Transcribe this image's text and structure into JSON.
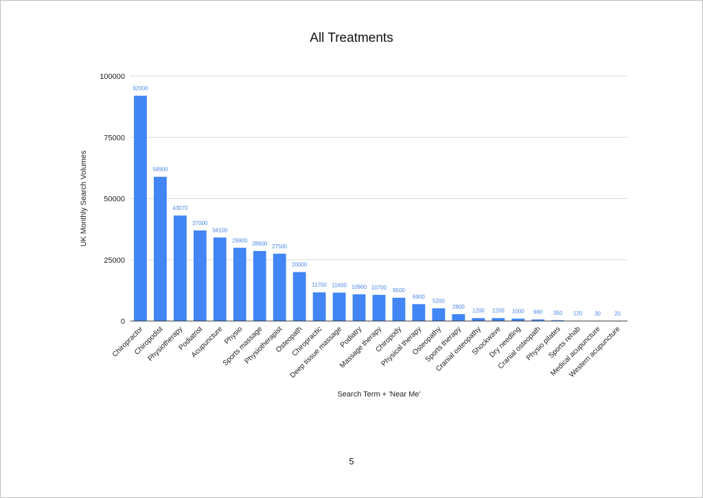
{
  "page": {
    "page_number": "5"
  },
  "chart_data": {
    "type": "bar",
    "title": "All Treatments",
    "xlabel": "Search Term + 'Near Me'",
    "ylabel": "UK Monthly Search Volumes",
    "ylim": [
      0,
      100000
    ],
    "yticks": [
      0,
      25000,
      50000,
      75000,
      100000
    ],
    "grid": true,
    "legend": "none",
    "bar_color": "#4285f4",
    "label_color": "#4a86e8",
    "categories": [
      "Chiropractor",
      "Chiropodist",
      "Physiotherapy",
      "Podiatrist",
      "Acupuncture",
      "Physio",
      "Sports massage",
      "Physiotherapist",
      "Osteopath",
      "Chiropractic",
      "Deep tissue massage",
      "Podiatry",
      "Massage therapy",
      "Chiropody",
      "Physical therapy",
      "Osteopathy",
      "Sports therapy",
      "Cranial osteopathy",
      "Shockwave",
      "Dry needling",
      "Cranial osteopath",
      "Physio pilates",
      "Sports rehab",
      "Medical acupuncture",
      "Western acupuncture"
    ],
    "values": [
      92000,
      58900,
      43070,
      37000,
      34100,
      29900,
      28600,
      27500,
      20000,
      11700,
      11600,
      10900,
      10700,
      9500,
      6900,
      5200,
      2800,
      1200,
      1200,
      1000,
      660,
      350,
      120,
      30,
      20
    ]
  }
}
